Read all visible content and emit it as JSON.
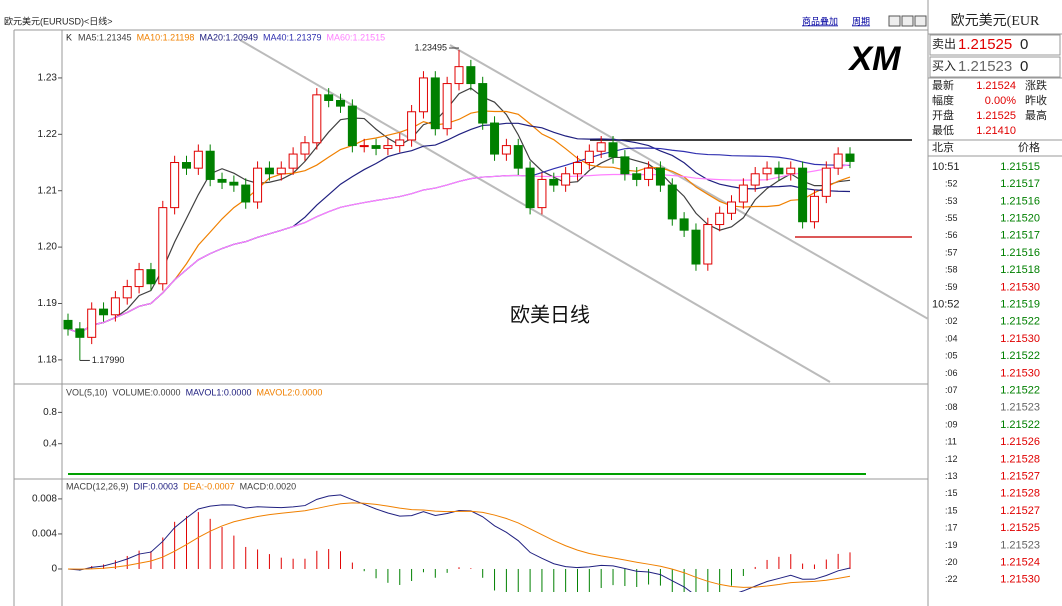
{
  "window": {
    "title": "欧元美元(EURUSD)<日线>",
    "links": [
      "商品叠加",
      "周期"
    ]
  },
  "chart_data": [
    {
      "type": "candlestick",
      "indicator_label": "K",
      "ma_labels": [
        {
          "text": "MA5:1.21345",
          "color": "#404040"
        },
        {
          "text": "MA10:1.21198",
          "color": "#f08000"
        },
        {
          "text": "MA20:1.20949",
          "color": "#202080"
        },
        {
          "text": "MA40:1.21379",
          "color": "#3030b0"
        },
        {
          "text": "MA60:1.21515",
          "color": "#ff80ff"
        }
      ],
      "up_color": "#e00000",
      "down_color": "#008000",
      "candles": [
        [
          1.187,
          1.1882,
          1.1843,
          1.1855
        ],
        [
          1.1855,
          1.1867,
          1.1799,
          1.184
        ],
        [
          1.184,
          1.1902,
          1.1828,
          1.189
        ],
        [
          1.189,
          1.1902,
          1.1868,
          1.188
        ],
        [
          1.188,
          1.1922,
          1.1868,
          1.191
        ],
        [
          1.191,
          1.1942,
          1.1898,
          1.193
        ],
        [
          1.193,
          1.1972,
          1.1918,
          1.196
        ],
        [
          1.196,
          1.1972,
          1.1923,
          1.1935
        ],
        [
          1.1935,
          1.2082,
          1.1923,
          1.207
        ],
        [
          1.207,
          1.2162,
          1.2058,
          1.215
        ],
        [
          1.215,
          1.2162,
          1.2128,
          1.214
        ],
        [
          1.214,
          1.2182,
          1.2128,
          1.217
        ],
        [
          1.217,
          1.2182,
          1.2108,
          1.212
        ],
        [
          1.212,
          1.2132,
          1.2103,
          1.2115
        ],
        [
          1.2115,
          1.2127,
          1.2098,
          1.211
        ],
        [
          1.211,
          1.2122,
          1.2068,
          1.208
        ],
        [
          1.208,
          1.2152,
          1.2068,
          1.214
        ],
        [
          1.214,
          1.2152,
          1.2118,
          1.213
        ],
        [
          1.213,
          1.2152,
          1.2118,
          1.214
        ],
        [
          1.214,
          1.2177,
          1.2128,
          1.2165
        ],
        [
          1.2165,
          1.2197,
          1.2153,
          1.2185
        ],
        [
          1.2185,
          1.2282,
          1.2173,
          1.227
        ],
        [
          1.227,
          1.2282,
          1.2248,
          1.226
        ],
        [
          1.226,
          1.2272,
          1.2238,
          1.225
        ],
        [
          1.225,
          1.2262,
          1.2168,
          1.218
        ],
        [
          1.218,
          1.2192,
          1.2168,
          1.218
        ],
        [
          1.218,
          1.2192,
          1.2163,
          1.2175
        ],
        [
          1.2175,
          1.2192,
          1.2163,
          1.218
        ],
        [
          1.218,
          1.2202,
          1.2168,
          1.219
        ],
        [
          1.219,
          1.2252,
          1.2178,
          1.224
        ],
        [
          1.224,
          1.2312,
          1.2228,
          1.23
        ],
        [
          1.23,
          1.2312,
          1.2198,
          1.221
        ],
        [
          1.221,
          1.2302,
          1.2198,
          1.229
        ],
        [
          1.229,
          1.23495,
          1.2278,
          1.232
        ],
        [
          1.232,
          1.2332,
          1.2278,
          1.229
        ],
        [
          1.229,
          1.2302,
          1.2208,
          1.222
        ],
        [
          1.222,
          1.2232,
          1.2153,
          1.2165
        ],
        [
          1.2165,
          1.2192,
          1.2153,
          1.218
        ],
        [
          1.218,
          1.2192,
          1.2128,
          1.214
        ],
        [
          1.214,
          1.2152,
          1.2058,
          1.207
        ],
        [
          1.207,
          1.2132,
          1.2058,
          1.212
        ],
        [
          1.212,
          1.2132,
          1.2098,
          1.211
        ],
        [
          1.211,
          1.2142,
          1.2098,
          1.213
        ],
        [
          1.213,
          1.2162,
          1.2118,
          1.215
        ],
        [
          1.215,
          1.2182,
          1.2138,
          1.217
        ],
        [
          1.217,
          1.2197,
          1.2158,
          1.2185
        ],
        [
          1.2185,
          1.2197,
          1.2148,
          1.216
        ],
        [
          1.216,
          1.2172,
          1.2118,
          1.213
        ],
        [
          1.213,
          1.2142,
          1.2108,
          1.212
        ],
        [
          1.212,
          1.2152,
          1.2108,
          1.214
        ],
        [
          1.214,
          1.2152,
          1.2098,
          1.211
        ],
        [
          1.211,
          1.2122,
          1.2038,
          1.205
        ],
        [
          1.205,
          1.2062,
          1.2018,
          1.203
        ],
        [
          1.203,
          1.2042,
          1.1958,
          1.197
        ],
        [
          1.197,
          1.2052,
          1.1958,
          1.204
        ],
        [
          1.204,
          1.2072,
          1.2028,
          1.206
        ],
        [
          1.206,
          1.2092,
          1.2048,
          1.208
        ],
        [
          1.208,
          1.2122,
          1.2068,
          1.211
        ],
        [
          1.211,
          1.2142,
          1.2098,
          1.213
        ],
        [
          1.213,
          1.2152,
          1.2118,
          1.214
        ],
        [
          1.214,
          1.2152,
          1.2118,
          1.213
        ],
        [
          1.213,
          1.2152,
          1.2118,
          1.214
        ],
        [
          1.214,
          1.2152,
          1.2033,
          1.2045
        ],
        [
          1.2045,
          1.2102,
          1.2033,
          1.209
        ],
        [
          1.209,
          1.2152,
          1.2078,
          1.214
        ],
        [
          1.214,
          1.2177,
          1.2128,
          1.2165
        ],
        [
          1.2165,
          1.2177,
          1.214,
          1.2152
        ]
      ],
      "ylim": [
        1.1759,
        1.2385
      ],
      "yticks": [
        1.18,
        1.19,
        {
          "value": 1.2,
          "label": "1.20"
        },
        1.21,
        1.22,
        1.23
      ],
      "annotations": [
        {
          "text": "1.23495",
          "value": 1.23495
        },
        {
          "text": "1.17990",
          "value": 1.1799
        }
      ],
      "watermark": "欧美日线",
      "logo": "XM"
    },
    {
      "type": "volume",
      "header": [
        {
          "text": "VOL(5,10)",
          "color": "#404040"
        },
        {
          "text": "VOLUME:0.0000",
          "color": "#404040"
        },
        {
          "text": "MAVOL1:0.0000",
          "color": "#202080"
        },
        {
          "text": "MAVOL2:0.0000",
          "color": "#f08000"
        }
      ],
      "ylim": [
        0,
        1.15
      ],
      "yticks": [
        0.4,
        0.8
      ]
    },
    {
      "type": "macd",
      "header": [
        {
          "text": "MACD(12,26,9)",
          "color": "#404040"
        },
        {
          "text": "DIF:0.0003",
          "color": "#202080"
        },
        {
          "text": "DEA:-0.0007",
          "color": "#f08000"
        },
        {
          "text": "MACD:0.0020",
          "color": "#404040"
        }
      ],
      "ylim": [
        -0.0024,
        0.0097
      ],
      "yticks": [
        0,
        0.004,
        0.008
      ]
    }
  ],
  "quote_panel": {
    "title": "欧元美元(EUR",
    "quotes": [
      {
        "label": "卖出",
        "value": "1.21525",
        "extra": "0"
      },
      {
        "label": "买入",
        "value": "1.21523",
        "extra": "0"
      }
    ],
    "stats": [
      {
        "label": "最新",
        "value": "1.21524",
        "tail": "涨跌"
      },
      {
        "label": "幅度",
        "value": "0.00%",
        "tail": "昨收"
      },
      {
        "label": "开盘",
        "value": "1.21525",
        "tail": "最高"
      },
      {
        "label": "最低",
        "value": "1.21410"
      }
    ],
    "tick_header": [
      "北京",
      "价格"
    ],
    "ticks": [
      {
        "time": "10:51",
        "price": "1.21515",
        "color": "#008000"
      },
      {
        "time": ":52",
        "price": "1.21517",
        "color": "#008000"
      },
      {
        "time": ":53",
        "price": "1.21516",
        "color": "#008000"
      },
      {
        "time": ":55",
        "price": "1.21520",
        "color": "#008000"
      },
      {
        "time": ":56",
        "price": "1.21517",
        "color": "#008000"
      },
      {
        "time": ":57",
        "price": "1.21516",
        "color": "#008000"
      },
      {
        "time": ":58",
        "price": "1.21518",
        "color": "#008000"
      },
      {
        "time": ":59",
        "price": "1.21530",
        "color": "#e00000"
      },
      {
        "time": "10:52",
        "price": "1.21519",
        "color": "#008000"
      },
      {
        "time": ":02",
        "price": "1.21522",
        "color": "#008000"
      },
      {
        "time": ":04",
        "price": "1.21530",
        "color": "#e00000"
      },
      {
        "time": ":05",
        "price": "1.21522",
        "color": "#008000"
      },
      {
        "time": ":06",
        "price": "1.21530",
        "color": "#e00000"
      },
      {
        "time": ":07",
        "price": "1.21522",
        "color": "#008000"
      },
      {
        "time": ":08",
        "price": "1.21523",
        "color": "#666666"
      },
      {
        "time": ":09",
        "price": "1.21522",
        "color": "#008000"
      },
      {
        "time": ":11",
        "price": "1.21526",
        "color": "#e00000"
      },
      {
        "time": ":12",
        "price": "1.21528",
        "color": "#e00000"
      },
      {
        "time": ":13",
        "price": "1.21527",
        "color": "#e00000"
      },
      {
        "time": ":15",
        "price": "1.21528",
        "color": "#e00000"
      },
      {
        "time": ":15",
        "price": "1.21527",
        "color": "#e00000"
      },
      {
        "time": ":17",
        "price": "1.21525",
        "color": "#e00000"
      },
      {
        "time": ":19",
        "price": "1.21523",
        "color": "#666666"
      },
      {
        "time": ":20",
        "price": "1.21524",
        "color": "#e00000"
      },
      {
        "time": ":22",
        "price": "1.21530",
        "color": "#e00000"
      }
    ]
  }
}
